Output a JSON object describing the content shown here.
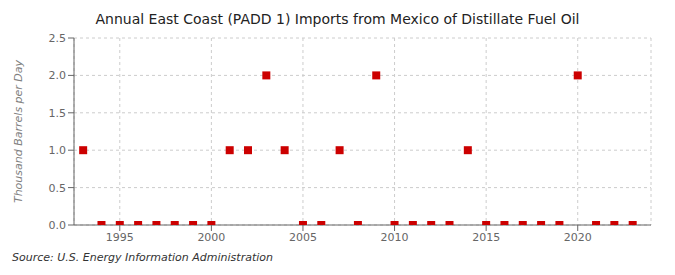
{
  "chart_data": {
    "type": "scatter",
    "title": "Annual East Coast (PADD 1) Imports from Mexico of Distillate Fuel Oil",
    "ylabel": "Thousand Barrels per Day",
    "annotation": "Source: U.S. Energy Information Administration",
    "x": [
      1993,
      1994,
      1995,
      1996,
      1997,
      1998,
      1999,
      2000,
      2001,
      2002,
      2003,
      2004,
      2005,
      2006,
      2007,
      2008,
      2009,
      2010,
      2011,
      2012,
      2013,
      2014,
      2015,
      2016,
      2017,
      2018,
      2019,
      2020,
      2021,
      2022,
      2023
    ],
    "values": [
      1.0,
      0.0,
      0.0,
      0.0,
      0.0,
      0.0,
      0.0,
      0.0,
      1.0,
      1.0,
      2.0,
      1.0,
      0.0,
      0.0,
      1.0,
      0.0,
      2.0,
      0.0,
      0.0,
      0.0,
      0.0,
      1.0,
      0.0,
      0.0,
      0.0,
      0.0,
      0.0,
      2.0,
      0.0,
      0.0,
      0.0
    ],
    "color": "#cc0000",
    "marker": "square",
    "xlim": [
      1992.5,
      2024.0
    ],
    "xticks": [
      1995,
      2000,
      2005,
      2010,
      2015,
      2020
    ],
    "ylim": [
      0.0,
      2.5
    ],
    "yticks": [
      {
        "value": 0.0,
        "label": "0.0"
      },
      0.5,
      {
        "value": 1.0,
        "label": "1.0"
      },
      1.5,
      {
        "value": 2.0,
        "label": "2.0"
      },
      2.5
    ],
    "grid": true
  }
}
